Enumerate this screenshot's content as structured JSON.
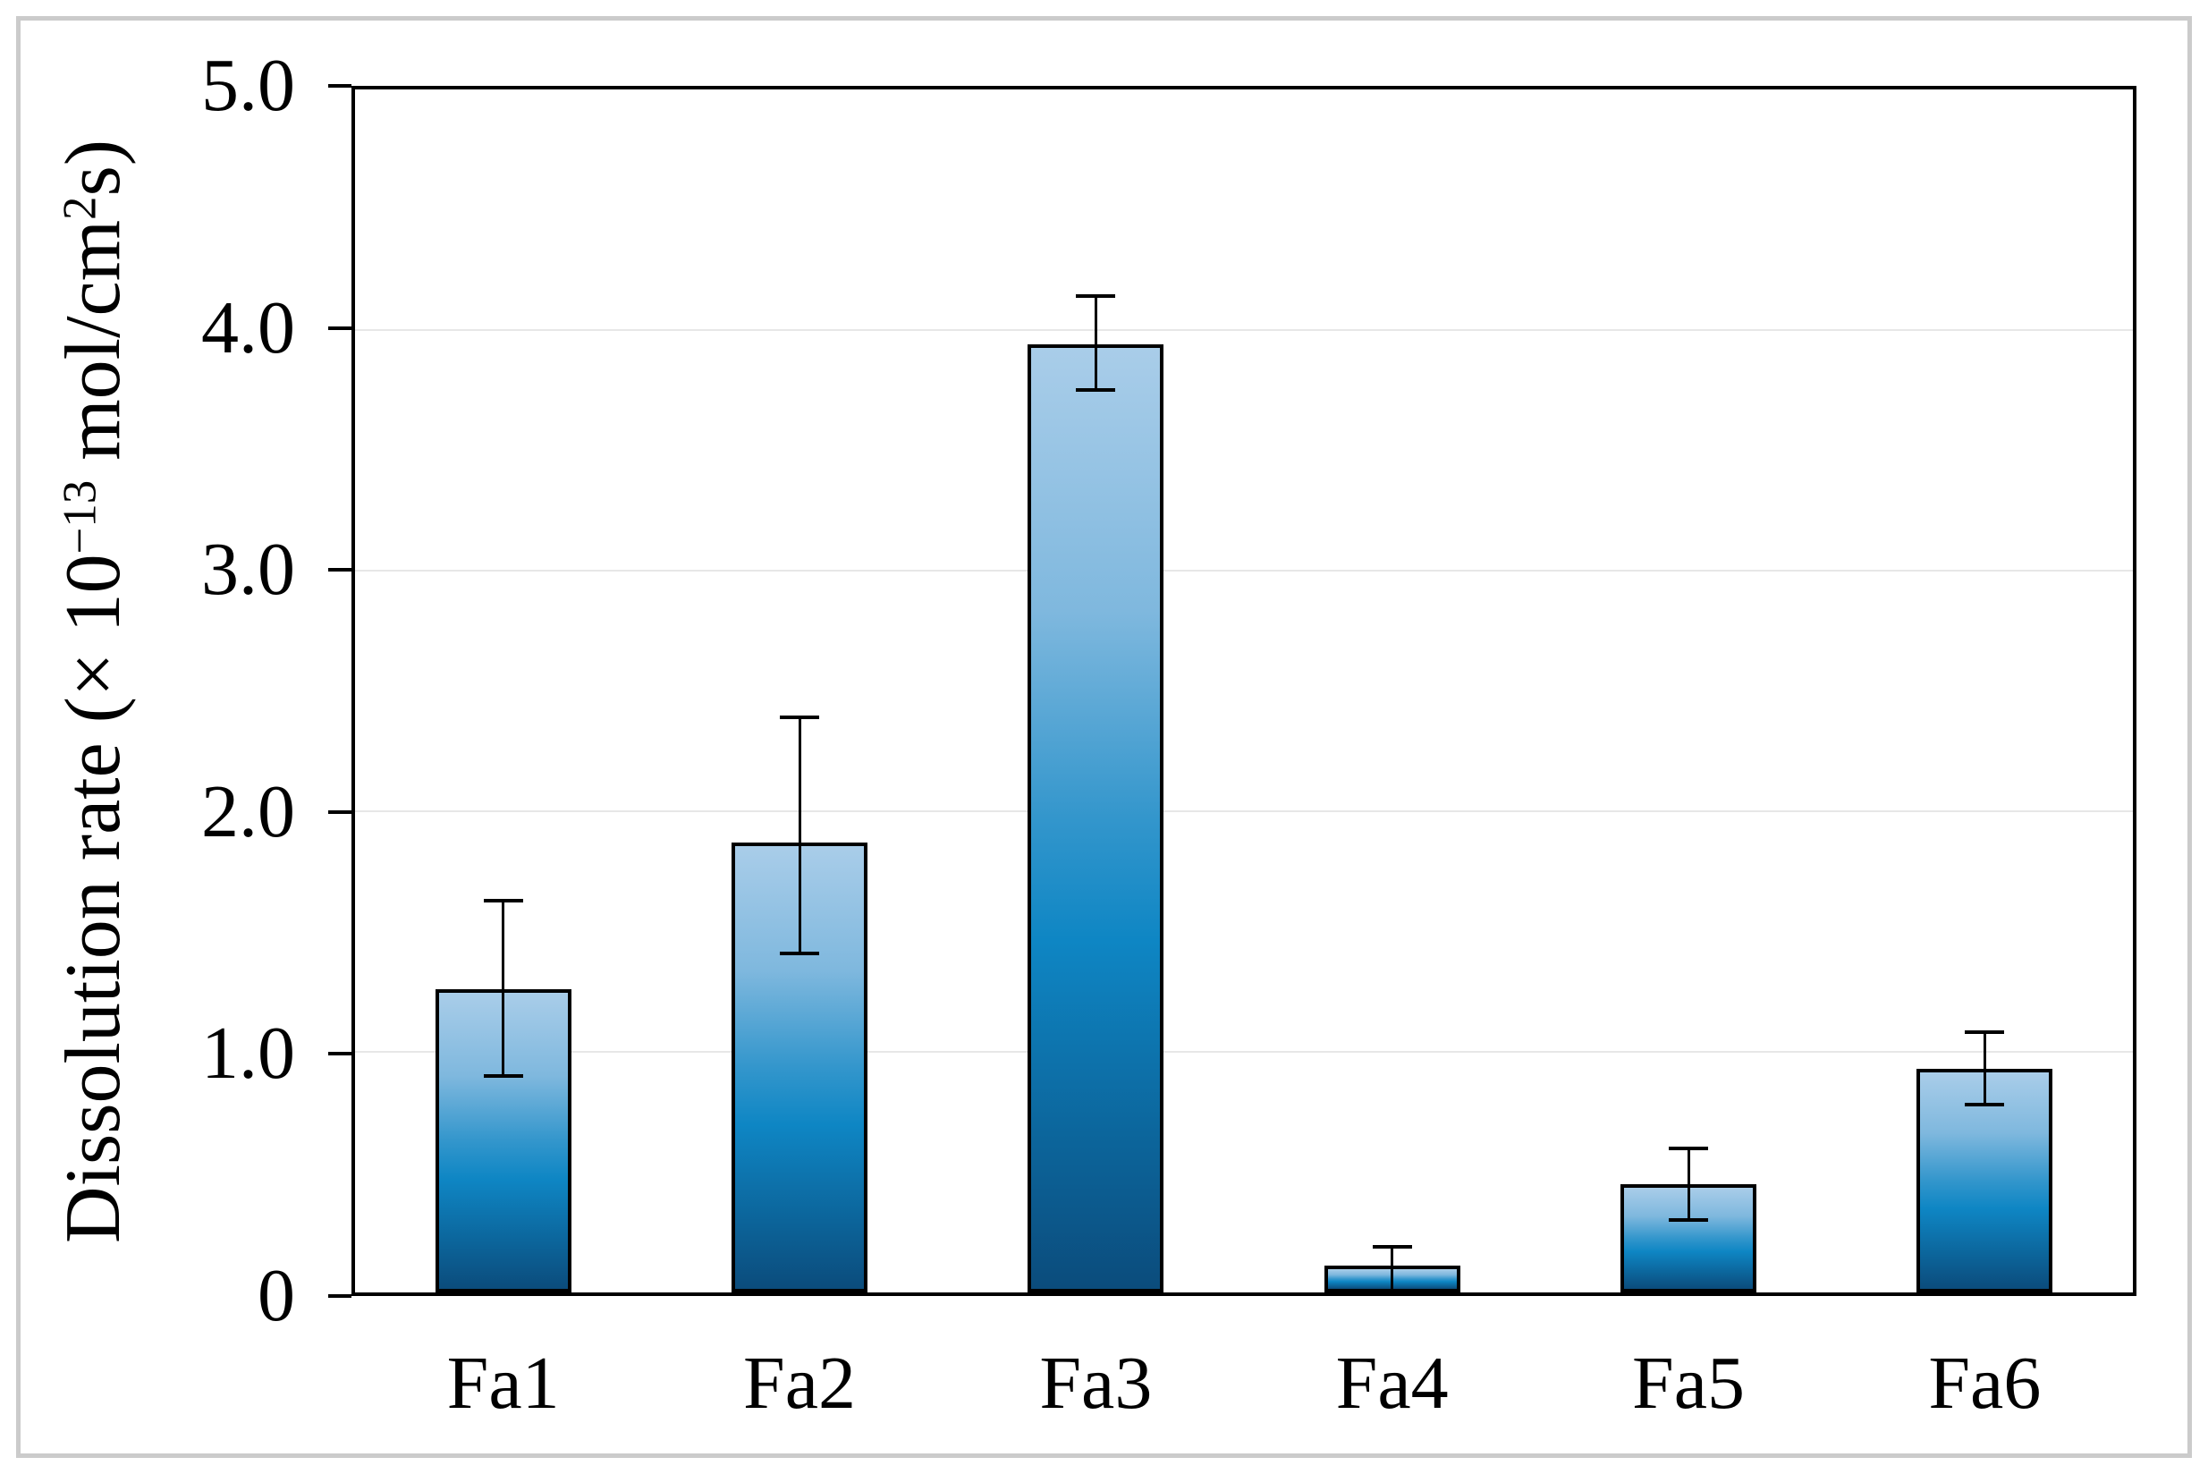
{
  "figure": {
    "background": "#ffffff",
    "frame_border_color": "#cbcbcb",
    "plot_border_color": "#000000",
    "gridline_color": "#e7e7e7"
  },
  "axis": {
    "ylabel_parts": {
      "prefix": "Dissolution rate (× 10",
      "sup_exponent": "−13",
      "mid": " mol/cm",
      "sup_square": "2",
      "suffix": "s)"
    }
  },
  "chart_data": {
    "type": "bar",
    "title": "",
    "xlabel": "",
    "ylabel": "Dissolution rate (× 10−13 mol/cm2s)",
    "categories": [
      "Fa1",
      "Fa2",
      "Fa3",
      "Fa4",
      "Fa5",
      "Fa6"
    ],
    "values": [
      1.26,
      1.87,
      3.94,
      0.11,
      0.45,
      0.93
    ],
    "error_upper": [
      1.63,
      2.39,
      4.14,
      0.19,
      0.6,
      1.08
    ],
    "error_lower": [
      0.9,
      1.41,
      3.75,
      0.0,
      0.3,
      0.78
    ],
    "ylim": [
      0,
      5
    ],
    "yticks": [
      {
        "value": 5,
        "label": "5.0"
      },
      {
        "value": 4,
        "label": "4.0"
      },
      {
        "value": 3,
        "label": "3.0"
      },
      {
        "value": 2,
        "label": "2.0"
      },
      {
        "value": 1,
        "label": "1.0"
      },
      {
        "value": 0,
        "label": "0"
      }
    ],
    "grid": "horizontal gridlines at 1.0, 2.0, 3.0, 4.0",
    "legend": "none",
    "bar_style": {
      "gradient_top": "#a9cde9",
      "gradient_upper_mid": "#7fb8de",
      "gradient_mid": "#3396cc",
      "gradient_lower_mid": "#0e86c4",
      "gradient_bottom": "#0b4c7c",
      "border_color": "#000000"
    }
  }
}
